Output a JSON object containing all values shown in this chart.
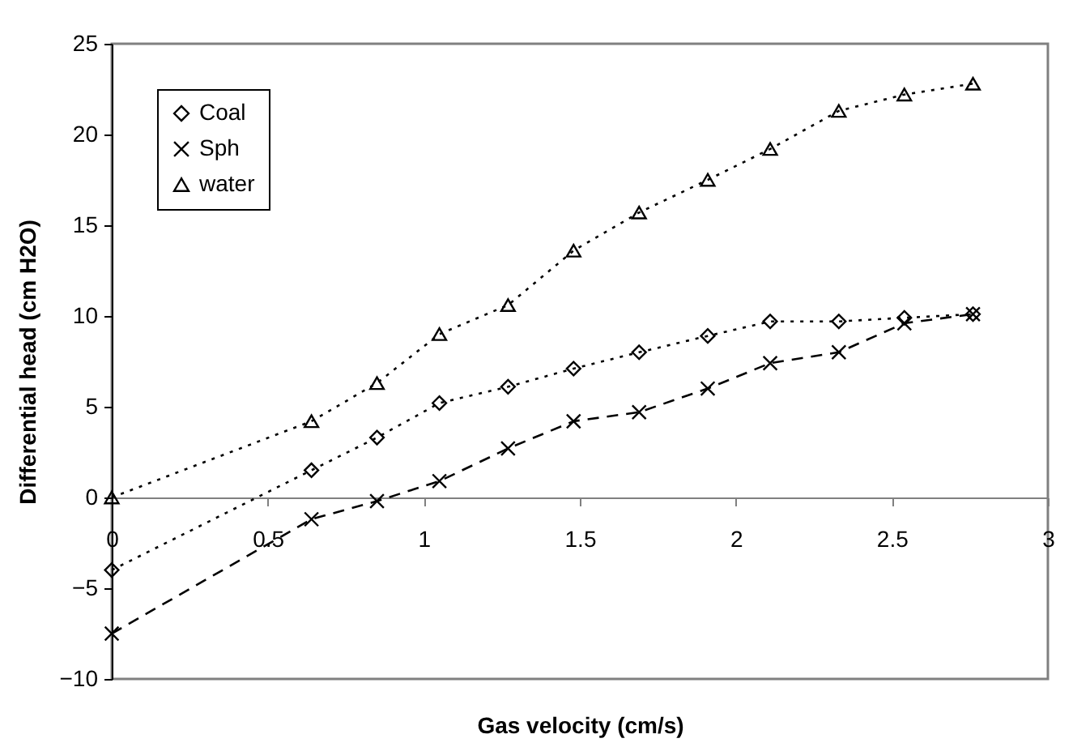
{
  "chart_data": {
    "type": "line",
    "xlabel": "Gas velocity (cm/s)",
    "ylabel": "Differential head (cm H2O)",
    "x": [
      0,
      0.64,
      0.85,
      1.05,
      1.27,
      1.48,
      1.69,
      1.91,
      2.11,
      2.33,
      2.54,
      2.76
    ],
    "series": [
      {
        "name": "Coal",
        "color": "#000000",
        "marker": "diamond",
        "line_style": "dotted",
        "values": [
          -4,
          1.5,
          3.3,
          5.2,
          6.1,
          7.1,
          8.0,
          8.9,
          9.7,
          9.7,
          9.9,
          10.1
        ]
      },
      {
        "name": "Sph",
        "color": "#000000",
        "marker": "cross",
        "line_style": "dashed",
        "values": [
          -7.5,
          -1.2,
          -0.2,
          0.9,
          2.7,
          4.2,
          4.7,
          6.0,
          7.4,
          8.0,
          9.6,
          10.1
        ]
      },
      {
        "name": "water",
        "color": "#000000",
        "marker": "triangle",
        "line_style": "dotted",
        "values": [
          0,
          4.2,
          6.3,
          9.0,
          10.6,
          13.6,
          15.7,
          17.5,
          19.2,
          21.3,
          22.2,
          22.8
        ]
      }
    ],
    "xlim": [
      0,
      3
    ],
    "xticks": [
      0,
      0.5,
      1,
      1.5,
      2,
      2.5,
      3
    ],
    "ylim": [
      -10,
      25
    ],
    "yticks": [
      -10,
      -5,
      0,
      5,
      10,
      15,
      20,
      25
    ],
    "grid": false,
    "legend": "top left"
  }
}
